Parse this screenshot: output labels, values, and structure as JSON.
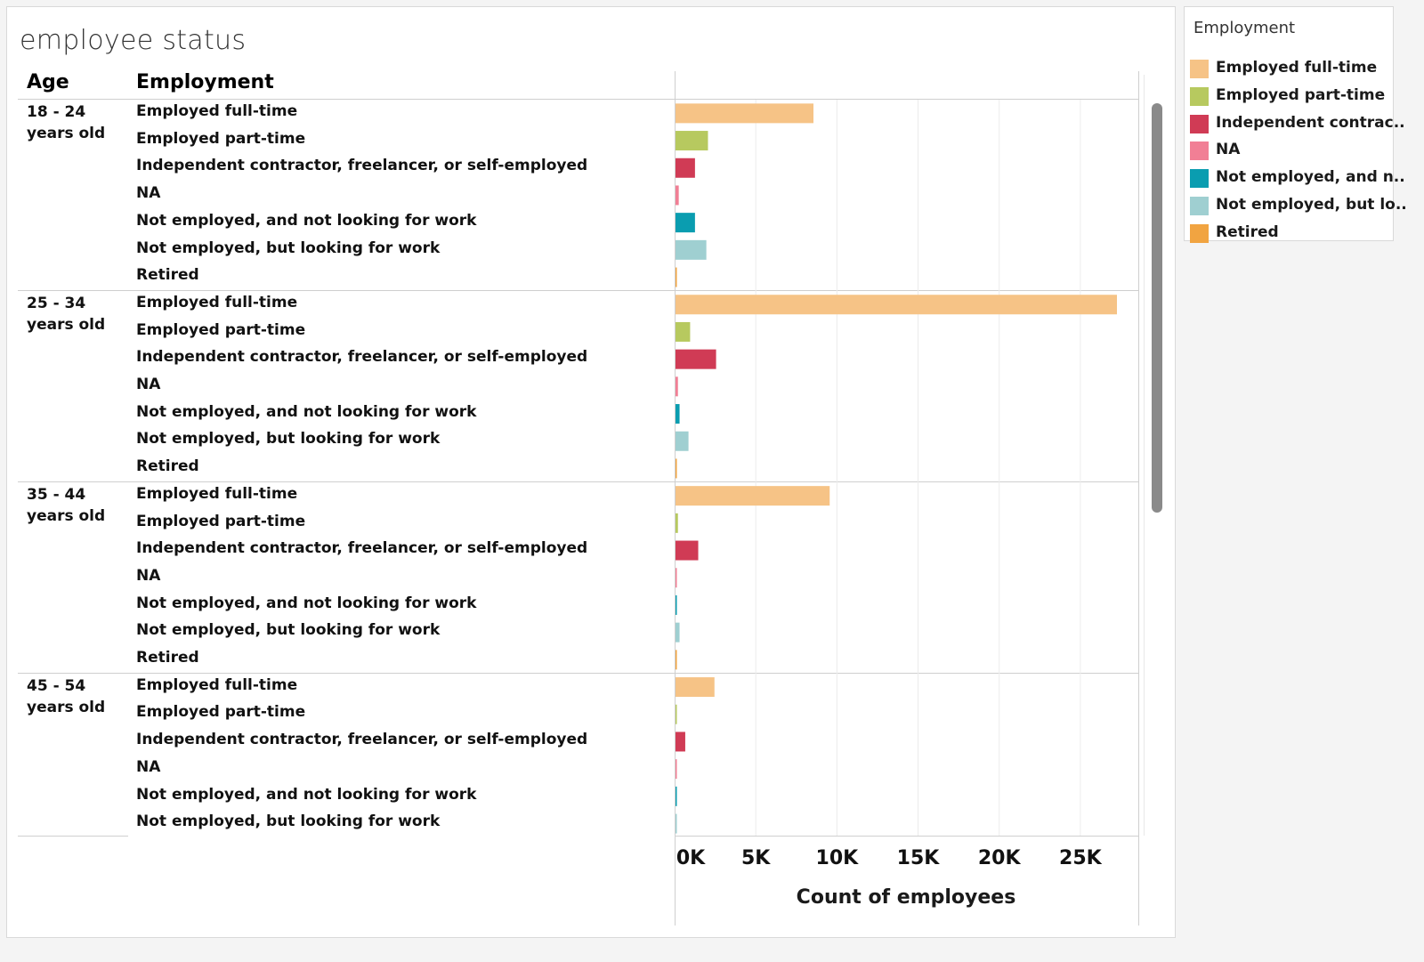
{
  "title": "employee status",
  "headers": {
    "age": "Age",
    "employment": "Employment"
  },
  "colors": {
    "Employed full-time": "#f6c386",
    "Employed part-time": "#b7c95f",
    "Independent contractor, freelancer, or self-employed": "#d03b55",
    "NA": "#f17f95",
    "Not employed, and not looking for work": "#0a9db0",
    "Not employed, but looking for work": "#9fcfd1",
    "Retired": "#f1a441"
  },
  "chart_data": {
    "type": "bar",
    "orientation": "horizontal",
    "xlabel": "Count of employees",
    "xlim": [
      0,
      28500
    ],
    "xticks": [
      "0K",
      "5K",
      "10K",
      "15K",
      "20K",
      "25K"
    ],
    "xtick_values": [
      0,
      5000,
      10000,
      15000,
      20000,
      25000
    ],
    "groups": [
      {
        "age": "18 - 24 years old",
        "rows": [
          {
            "employment": "Employed full-time",
            "value": 8500
          },
          {
            "employment": "Employed part-time",
            "value": 2000
          },
          {
            "employment": "Independent contractor, freelancer, or self-employed",
            "value": 1200
          },
          {
            "employment": "NA",
            "value": 200
          },
          {
            "employment": "Not employed, and not looking for work",
            "value": 1200
          },
          {
            "employment": "Not employed, but looking for work",
            "value": 1900
          },
          {
            "employment": "Retired",
            "value": 50
          }
        ]
      },
      {
        "age": "25 - 34 years old",
        "rows": [
          {
            "employment": "Employed full-time",
            "value": 27200
          },
          {
            "employment": "Employed part-time",
            "value": 900
          },
          {
            "employment": "Independent contractor, freelancer, or self-employed",
            "value": 2500
          },
          {
            "employment": "NA",
            "value": 150
          },
          {
            "employment": "Not employed, and not looking for work",
            "value": 250
          },
          {
            "employment": "Not employed, but looking for work",
            "value": 800
          },
          {
            "employment": "Retired",
            "value": 30
          }
        ]
      },
      {
        "age": "35 - 44 years old",
        "rows": [
          {
            "employment": "Employed full-time",
            "value": 9500
          },
          {
            "employment": "Employed part-time",
            "value": 150
          },
          {
            "employment": "Independent contractor, freelancer, or self-employed",
            "value": 1400
          },
          {
            "employment": "NA",
            "value": 40
          },
          {
            "employment": "Not employed, and not looking for work",
            "value": 50
          },
          {
            "employment": "Not employed, but looking for work",
            "value": 250
          },
          {
            "employment": "Retired",
            "value": 40
          }
        ]
      },
      {
        "age": "45 - 54 years old",
        "rows": [
          {
            "employment": "Employed full-time",
            "value": 2400
          },
          {
            "employment": "Employed part-time",
            "value": 50
          },
          {
            "employment": "Independent contractor, freelancer, or self-employed",
            "value": 600
          },
          {
            "employment": "NA",
            "value": 20
          },
          {
            "employment": "Not employed, and not looking for work",
            "value": 40
          },
          {
            "employment": "Not employed, but looking for work",
            "value": 60
          }
        ]
      }
    ]
  },
  "legend": {
    "title": "Employment",
    "items": [
      {
        "label": "Employed full-time",
        "color": "#f6c386"
      },
      {
        "label": "Employed part-time",
        "color": "#b7c95f"
      },
      {
        "label": "Independent contrac..",
        "color": "#d03b55"
      },
      {
        "label": "NA",
        "color": "#f17f95"
      },
      {
        "label": "Not employed, and n..",
        "color": "#0a9db0"
      },
      {
        "label": "Not employed, but lo..",
        "color": "#9fcfd1"
      },
      {
        "label": "Retired",
        "color": "#f1a441"
      }
    ]
  }
}
